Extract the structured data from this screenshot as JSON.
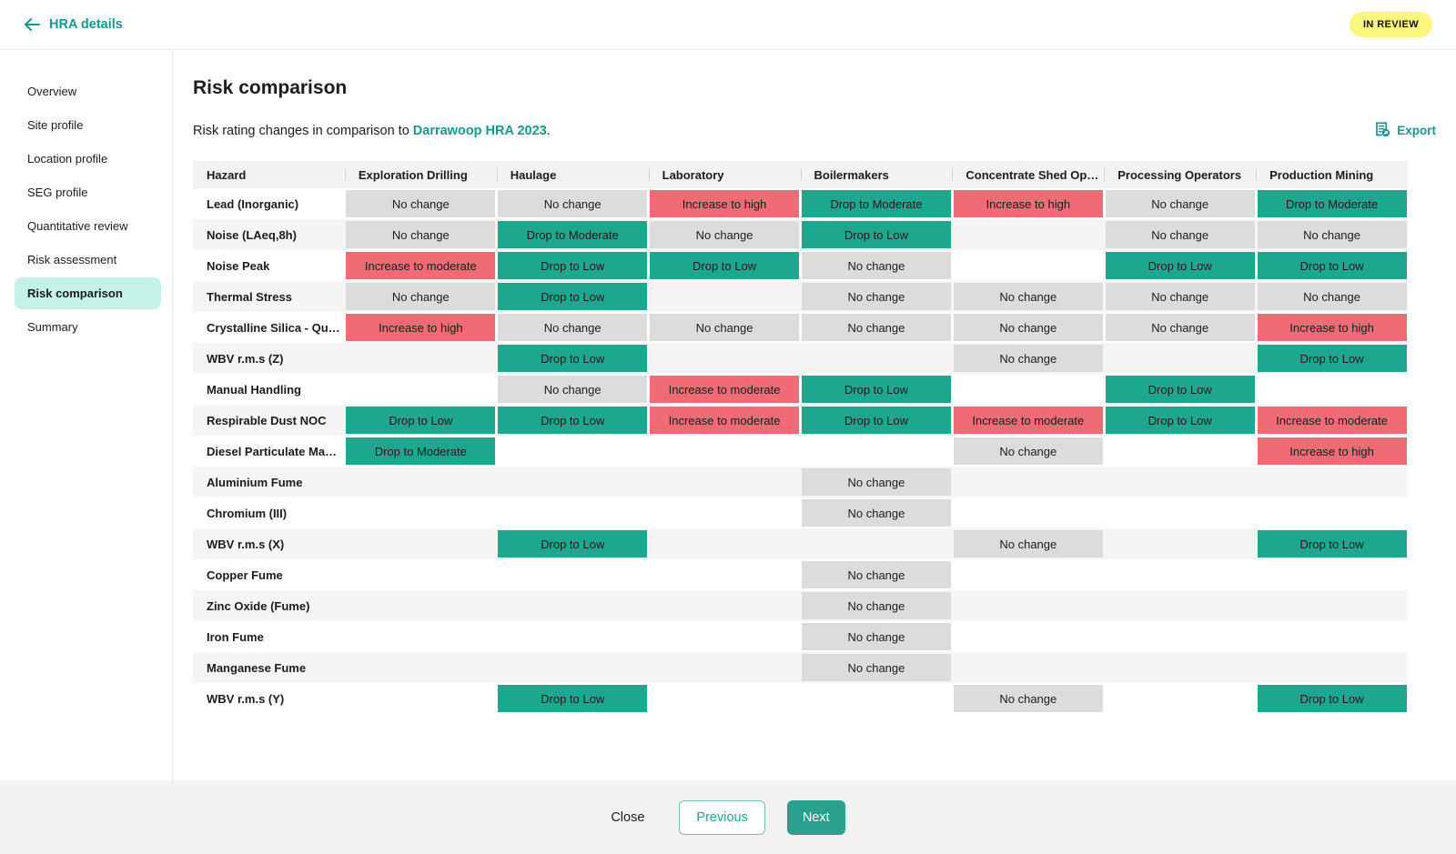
{
  "header": {
    "back_label": "HRA details",
    "status_badge": "IN REVIEW"
  },
  "sidebar": {
    "items": [
      {
        "label": "Overview",
        "active": false
      },
      {
        "label": "Site profile",
        "active": false
      },
      {
        "label": "Location profile",
        "active": false
      },
      {
        "label": "SEG profile",
        "active": false
      },
      {
        "label": "Quantitative review",
        "active": false
      },
      {
        "label": "Risk assessment",
        "active": false
      },
      {
        "label": "Risk comparison",
        "active": true
      },
      {
        "label": "Summary",
        "active": false
      }
    ]
  },
  "main": {
    "title": "Risk comparison",
    "subtitle_prefix": "Risk rating changes in comparison to ",
    "subtitle_link": "Darrawoop HRA 2023",
    "subtitle_suffix": ".",
    "export_label": "Export",
    "export_icon": "document-export-icon"
  },
  "colors": {
    "accent_teal": "#15998a",
    "chip_drop_teal": "#1ca78f",
    "chip_increase_red": "#f06b75",
    "chip_nochange_gray": "#dcdcdc",
    "badge_yellow": "#faf67e",
    "active_nav_mint": "#c3f2e6"
  },
  "table": {
    "columns": [
      "Hazard",
      "Exploration Drilling",
      "Haulage",
      "Laboratory",
      "Boilermakers",
      "Concentrate Shed Op…",
      "Processing Operators",
      "Production Mining"
    ],
    "rows": [
      {
        "hazard": "Lead (Inorganic)",
        "cells": [
          "No change",
          "No change",
          "Increase to high",
          "Drop to Moderate",
          "Increase to high",
          "No change",
          "Drop to Moderate"
        ]
      },
      {
        "hazard": "Noise (LAeq,8h)",
        "cells": [
          "No change",
          "Drop to Moderate",
          "No change",
          "Drop to Low",
          "",
          "No change",
          "No change"
        ]
      },
      {
        "hazard": "Noise Peak",
        "cells": [
          "Increase to moderate",
          "Drop to Low",
          "Drop to Low",
          "No change",
          "",
          "Drop to Low",
          "Drop to Low"
        ]
      },
      {
        "hazard": "Thermal Stress",
        "cells": [
          "No change",
          "Drop to Low",
          "",
          "No change",
          "No change",
          "No change",
          "No change"
        ]
      },
      {
        "hazard": "Crystalline Silica - Qu…",
        "cells": [
          "Increase to high",
          "No change",
          "No change",
          "No change",
          "No change",
          "No change",
          "Increase to high"
        ]
      },
      {
        "hazard": "WBV r.m.s (Z)",
        "cells": [
          "",
          "Drop to Low",
          "",
          "",
          "No change",
          "",
          "Drop to Low"
        ]
      },
      {
        "hazard": "Manual Handling",
        "cells": [
          "",
          "No change",
          "Increase to moderate",
          "Drop to Low",
          "",
          "Drop to Low",
          ""
        ]
      },
      {
        "hazard": "Respirable Dust NOC",
        "cells": [
          "Drop to Low",
          "Drop to Low",
          "Increase to moderate",
          "Drop to Low",
          "Increase to moderate",
          "Drop to Low",
          "Increase to moderate"
        ]
      },
      {
        "hazard": "Diesel Particulate Ma…",
        "cells": [
          "Drop to Moderate",
          "",
          "",
          "",
          "No change",
          "",
          "Increase to high"
        ]
      },
      {
        "hazard": "Aluminium Fume",
        "cells": [
          "",
          "",
          "",
          "No change",
          "",
          "",
          ""
        ]
      },
      {
        "hazard": "Chromium (III)",
        "cells": [
          "",
          "",
          "",
          "No change",
          "",
          "",
          ""
        ]
      },
      {
        "hazard": "WBV r.m.s (X)",
        "cells": [
          "",
          "Drop to Low",
          "",
          "",
          "No change",
          "",
          "Drop to Low"
        ]
      },
      {
        "hazard": "Copper Fume",
        "cells": [
          "",
          "",
          "",
          "No change",
          "",
          "",
          ""
        ]
      },
      {
        "hazard": "Zinc Oxide (Fume)",
        "cells": [
          "",
          "",
          "",
          "No change",
          "",
          "",
          ""
        ]
      },
      {
        "hazard": "Iron Fume",
        "cells": [
          "",
          "",
          "",
          "No change",
          "",
          "",
          ""
        ]
      },
      {
        "hazard": "Manganese Fume",
        "cells": [
          "",
          "",
          "",
          "No change",
          "",
          "",
          ""
        ]
      },
      {
        "hazard": "WBV r.m.s (Y)",
        "cells": [
          "",
          "Drop to Low",
          "",
          "",
          "No change",
          "",
          "Drop to Low"
        ]
      }
    ]
  },
  "footer": {
    "close_label": "Close",
    "previous_label": "Previous",
    "next_label": "Next"
  }
}
